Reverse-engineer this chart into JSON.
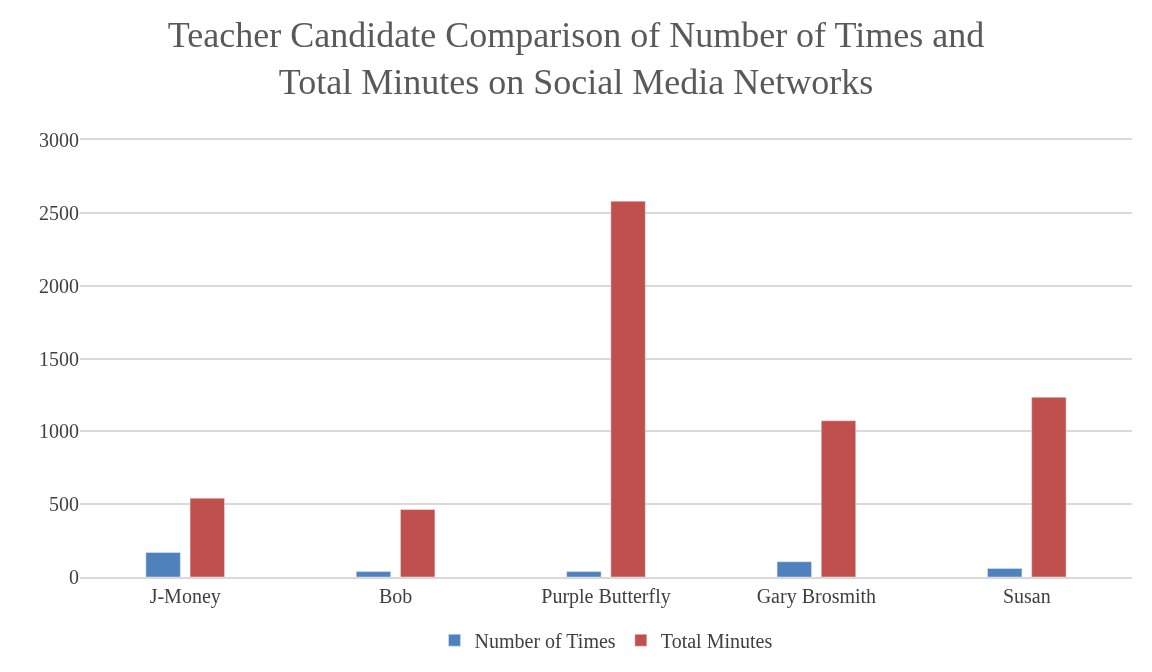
{
  "chart_data": {
    "type": "bar",
    "title": "Teacher Candidate Comparison of Number of Times and\nTotal Minutes on Social Media Networks",
    "categories": [
      "J-Money",
      "Bob",
      "Purple Butterfly",
      "Gary Brosmith",
      "Susan"
    ],
    "series": [
      {
        "name": "Number of Times",
        "color": "#4f81bd",
        "values": [
          168,
          37,
          37,
          105,
          59
        ]
      },
      {
        "name": "Total Minutes",
        "color": "#c0504d",
        "values": [
          541,
          463,
          2580,
          1073,
          1234
        ]
      }
    ],
    "ylim": [
      0,
      3000
    ],
    "yticks": [
      0,
      500,
      1000,
      1500,
      2000,
      2500,
      3000
    ],
    "grid": "y",
    "legend": "bottom"
  }
}
